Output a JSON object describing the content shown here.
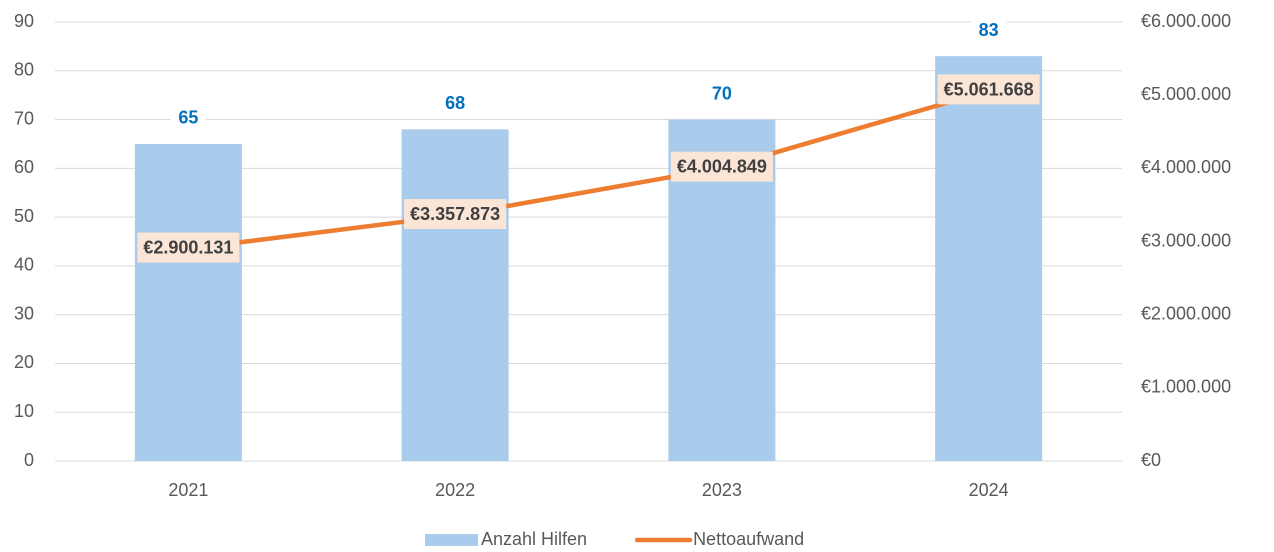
{
  "chart_data": {
    "type": "bar",
    "categories": [
      "2021",
      "2022",
      "2023",
      "2024"
    ],
    "series": [
      {
        "name": "Anzahl Hilfen",
        "type": "bar",
        "color": "#a9cbec",
        "label_color": "#0070c0",
        "values": [
          65,
          68,
          70,
          83
        ]
      },
      {
        "name": "Nettoaufwand",
        "type": "line",
        "axis": "y2",
        "color": "#ed7d31",
        "label_background": "#fbe5d6",
        "values": [
          2900131,
          3357873,
          4004849,
          5061668
        ],
        "value_labels": [
          "€2.900.131",
          "€3.357.873",
          "€4.004.849",
          "€5.061.668"
        ]
      }
    ],
    "ylim": [
      0,
      90
    ],
    "yticks": [
      0,
      10,
      20,
      30,
      40,
      50,
      60,
      70,
      80,
      90
    ],
    "y2lim": [
      0,
      6000000
    ],
    "y2ticks": [
      {
        "value": 0,
        "label": "€0"
      },
      {
        "value": 1000000,
        "label": "€1.000.000"
      },
      {
        "value": 2000000,
        "label": "€2.000.000"
      },
      {
        "value": 3000000,
        "label": "€3.000.000"
      },
      {
        "value": 4000000,
        "label": "€4.000.000"
      },
      {
        "value": 5000000,
        "label": "€5.000.000"
      },
      {
        "value": 6000000,
        "label": "€6.000.000"
      }
    ],
    "grid": true,
    "legend": "bottom"
  }
}
